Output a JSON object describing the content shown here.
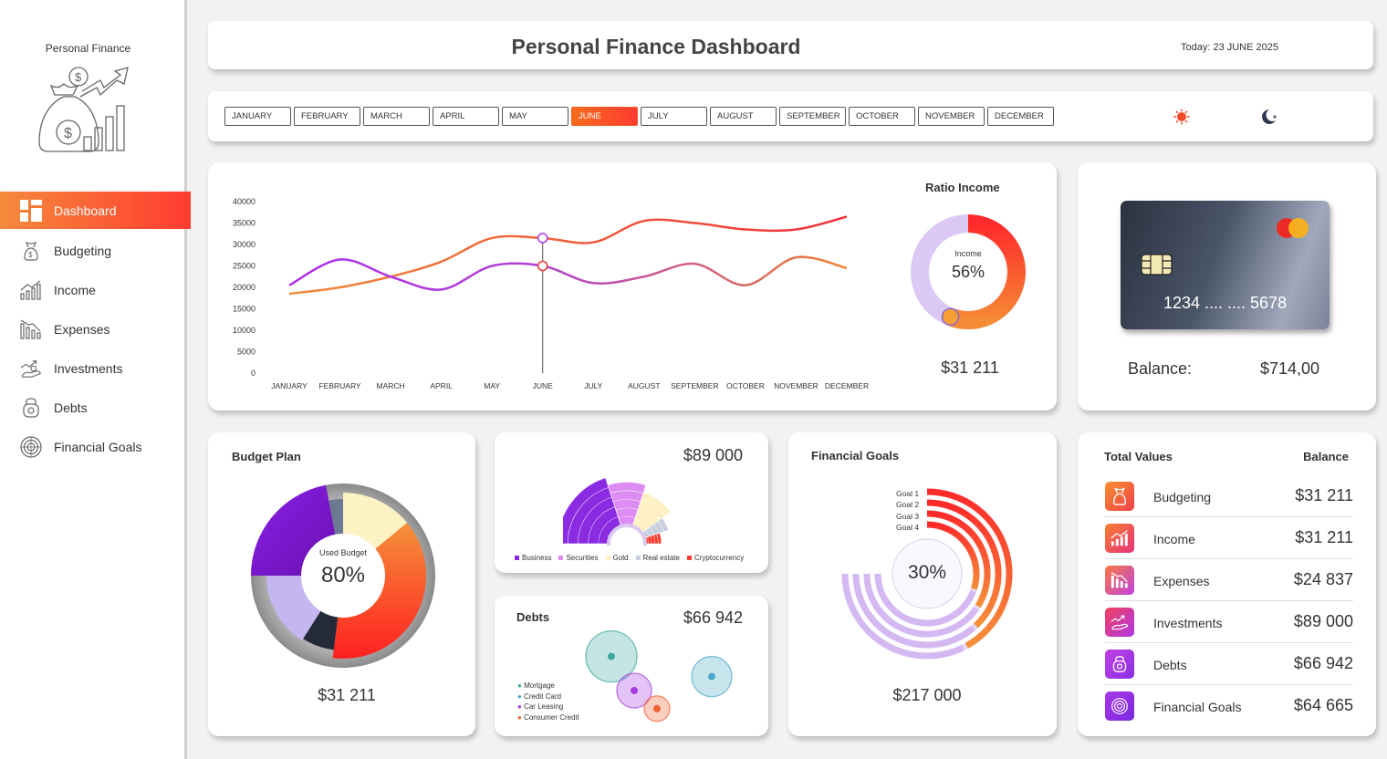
{
  "sidebar": {
    "brand": "Personal Finance",
    "items": [
      {
        "label": "Dashboard",
        "icon": "dashboard-icon"
      },
      {
        "label": "Budgeting",
        "icon": "money-bag-icon"
      },
      {
        "label": "Income",
        "icon": "income-chart-icon"
      },
      {
        "label": "Expenses",
        "icon": "expenses-chart-icon"
      },
      {
        "label": "Investments",
        "icon": "investments-icon"
      },
      {
        "label": "Debts",
        "icon": "debts-icon"
      },
      {
        "label": "Financial Goals",
        "icon": "target-icon"
      }
    ]
  },
  "header": {
    "title": "Personal Finance Dashboard",
    "date": "Today: 23 JUNE 2025"
  },
  "months": {
    "items": [
      "JANUARY",
      "FEBRUARY",
      "MARCH",
      "APRIL",
      "MAY",
      "JUNE",
      "JULY",
      "AUGUST",
      "SEPTEMBER",
      "OCTOBER",
      "NOVEMBER",
      "DECEMBER"
    ],
    "selected": "JUNE"
  },
  "theme": {
    "light_icon": "sun-icon",
    "dark_icon": "moon-icon"
  },
  "line_chart": {
    "chart_data": {
      "type": "line",
      "categories": [
        "JANUARY",
        "FEBRUARY",
        "MARCH",
        "APRIL",
        "MAY",
        "JUNE",
        "JULY",
        "AUGUST",
        "SEPTEMBER",
        "OCTOBER",
        "NOVEMBER",
        "DECEMBER"
      ],
      "series": [
        {
          "values": [
            18500,
            20000,
            22500,
            26000,
            31500,
            31500,
            30500,
            35500,
            35000,
            33500,
            33500,
            36500
          ],
          "color": "#f07a35"
        },
        {
          "values": [
            20500,
            26500,
            22500,
            19500,
            25000,
            25000,
            21000,
            22500,
            25500,
            20500,
            27000,
            24500
          ],
          "color": "#b23be3"
        }
      ],
      "yticks": [
        "40000",
        "35000",
        "30000",
        "25000",
        "20000",
        "15000",
        "10000",
        "5000",
        "0"
      ],
      "ylim": [
        0,
        40000
      ],
      "highlight_index": 5
    }
  },
  "ratio_income": {
    "title": "Ratio Income",
    "label": "Income",
    "percent": "56%",
    "fraction": 0.56,
    "value": "$31 211"
  },
  "bank_card": {
    "number": "1234 .... .... 5678",
    "balance_label": "Balance:",
    "balance_value": "$714,00"
  },
  "budget_plan": {
    "title": "Budget Plan",
    "center_label": "Used Budget",
    "percent": "80%",
    "value": "$31 211",
    "chart_data": {
      "type": "pie",
      "outer_values": [
        80,
        20
      ],
      "inner_slices": [
        {
          "value": 14,
          "color": "#fdf2c4"
        },
        {
          "value": 38,
          "color": "#ff4a2a"
        },
        {
          "value": 7,
          "color": "#252a3a"
        },
        {
          "value": 16,
          "color": "#c4b6ef"
        },
        {
          "value": 22,
          "color": "#8a2be2"
        },
        {
          "value": 3,
          "color": "#6b7a90"
        }
      ]
    }
  },
  "investments": {
    "value": "$89 000",
    "chart_data": {
      "type": "pie",
      "categories": [
        "Business",
        "Securities",
        "Gold",
        "Real estate",
        "Cryptocurrency"
      ],
      "values": [
        40,
        20,
        20,
        10,
        10
      ],
      "radii": [
        1.0,
        0.85,
        0.7,
        0.5,
        0.32
      ],
      "colors": [
        "#8a2be2",
        "#dc8cf2",
        "#fdf0c2",
        "#c8d0e0",
        "#ff3b30"
      ]
    }
  },
  "debts": {
    "title": "Debts",
    "value": "$66 942",
    "chart_data": {
      "type": "scatter",
      "categories": [
        "Mortgage",
        "Credit Card",
        "Car Leasing",
        "Consumer Credit"
      ],
      "colors": [
        "#3aa89e",
        "#4aa8c8",
        "#a43de0",
        "#f06030"
      ],
      "points": [
        {
          "x": 1.0,
          "y": 3.2,
          "r": 28,
          "color": "#3aa89e"
        },
        {
          "x": 1.5,
          "y": 1.5,
          "r": 19,
          "color": "#a43de0"
        },
        {
          "x": 2.0,
          "y": 0.6,
          "r": 14,
          "color": "#f06030"
        },
        {
          "x": 3.2,
          "y": 2.2,
          "r": 22,
          "color": "#4aa8c8"
        }
      ]
    }
  },
  "financial_goals": {
    "title": "Financial Goals",
    "center": "30%",
    "value": "$217 000",
    "goals": [
      "Goal  1",
      "Goal  2",
      "Goal  3",
      "Goal  4"
    ],
    "chart_data": {
      "type": "pie",
      "categories": [
        "Goal 1",
        "Goal 2",
        "Goal 3",
        "Goal 4"
      ],
      "fractions": [
        0.3,
        0.28,
        0.22,
        0.2
      ]
    }
  },
  "totals": {
    "title": "Total Values",
    "balance_header": "Balance",
    "rows": [
      {
        "label": "Budgeting",
        "value": "$31 211",
        "icon": "money-bag-icon",
        "color": "#f46b3a"
      },
      {
        "label": "Income",
        "value": "$31 211",
        "icon": "income-chart-icon",
        "color": "#f05a4a"
      },
      {
        "label": "Expenses",
        "value": "$24 837",
        "icon": "expenses-chart-icon",
        "color": "#d94aa0"
      },
      {
        "label": "Investments",
        "value": "$89 000",
        "icon": "investments-icon",
        "color": "#c043d0"
      },
      {
        "label": "Debts",
        "value": "$66 942",
        "icon": "debts-icon",
        "color": "#a83de0"
      },
      {
        "label": "Financial Goals",
        "value": "$64 665",
        "icon": "target-icon",
        "color": "#8a30e0"
      }
    ]
  }
}
